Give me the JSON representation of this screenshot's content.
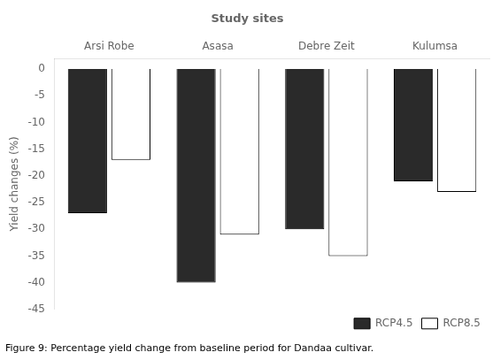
{
  "chart_data": {
    "type": "bar",
    "title": "Study sites",
    "caption": "Figure 9: Percentage yield change from baseline period for Dandaa cultivar.",
    "categories": [
      "Arsi Robe",
      "Asasa",
      "Debre Zeit",
      "Kulumsa"
    ],
    "series": [
      {
        "name": "RCP4.5",
        "color": "#2a2a2a",
        "values": [
          -27,
          -40,
          -30,
          -21
        ]
      },
      {
        "name": "RCP8.5",
        "color": "#ffffff",
        "values": [
          -17,
          -31,
          -35,
          -23
        ]
      }
    ],
    "ylabel": "Yield changes (%)",
    "ylim": [
      -45,
      2
    ],
    "yticks": [
      0,
      -5,
      -10,
      -15,
      -20,
      -25,
      -30,
      -35,
      -40,
      -45
    ],
    "grid": false,
    "legend": "lower right"
  }
}
